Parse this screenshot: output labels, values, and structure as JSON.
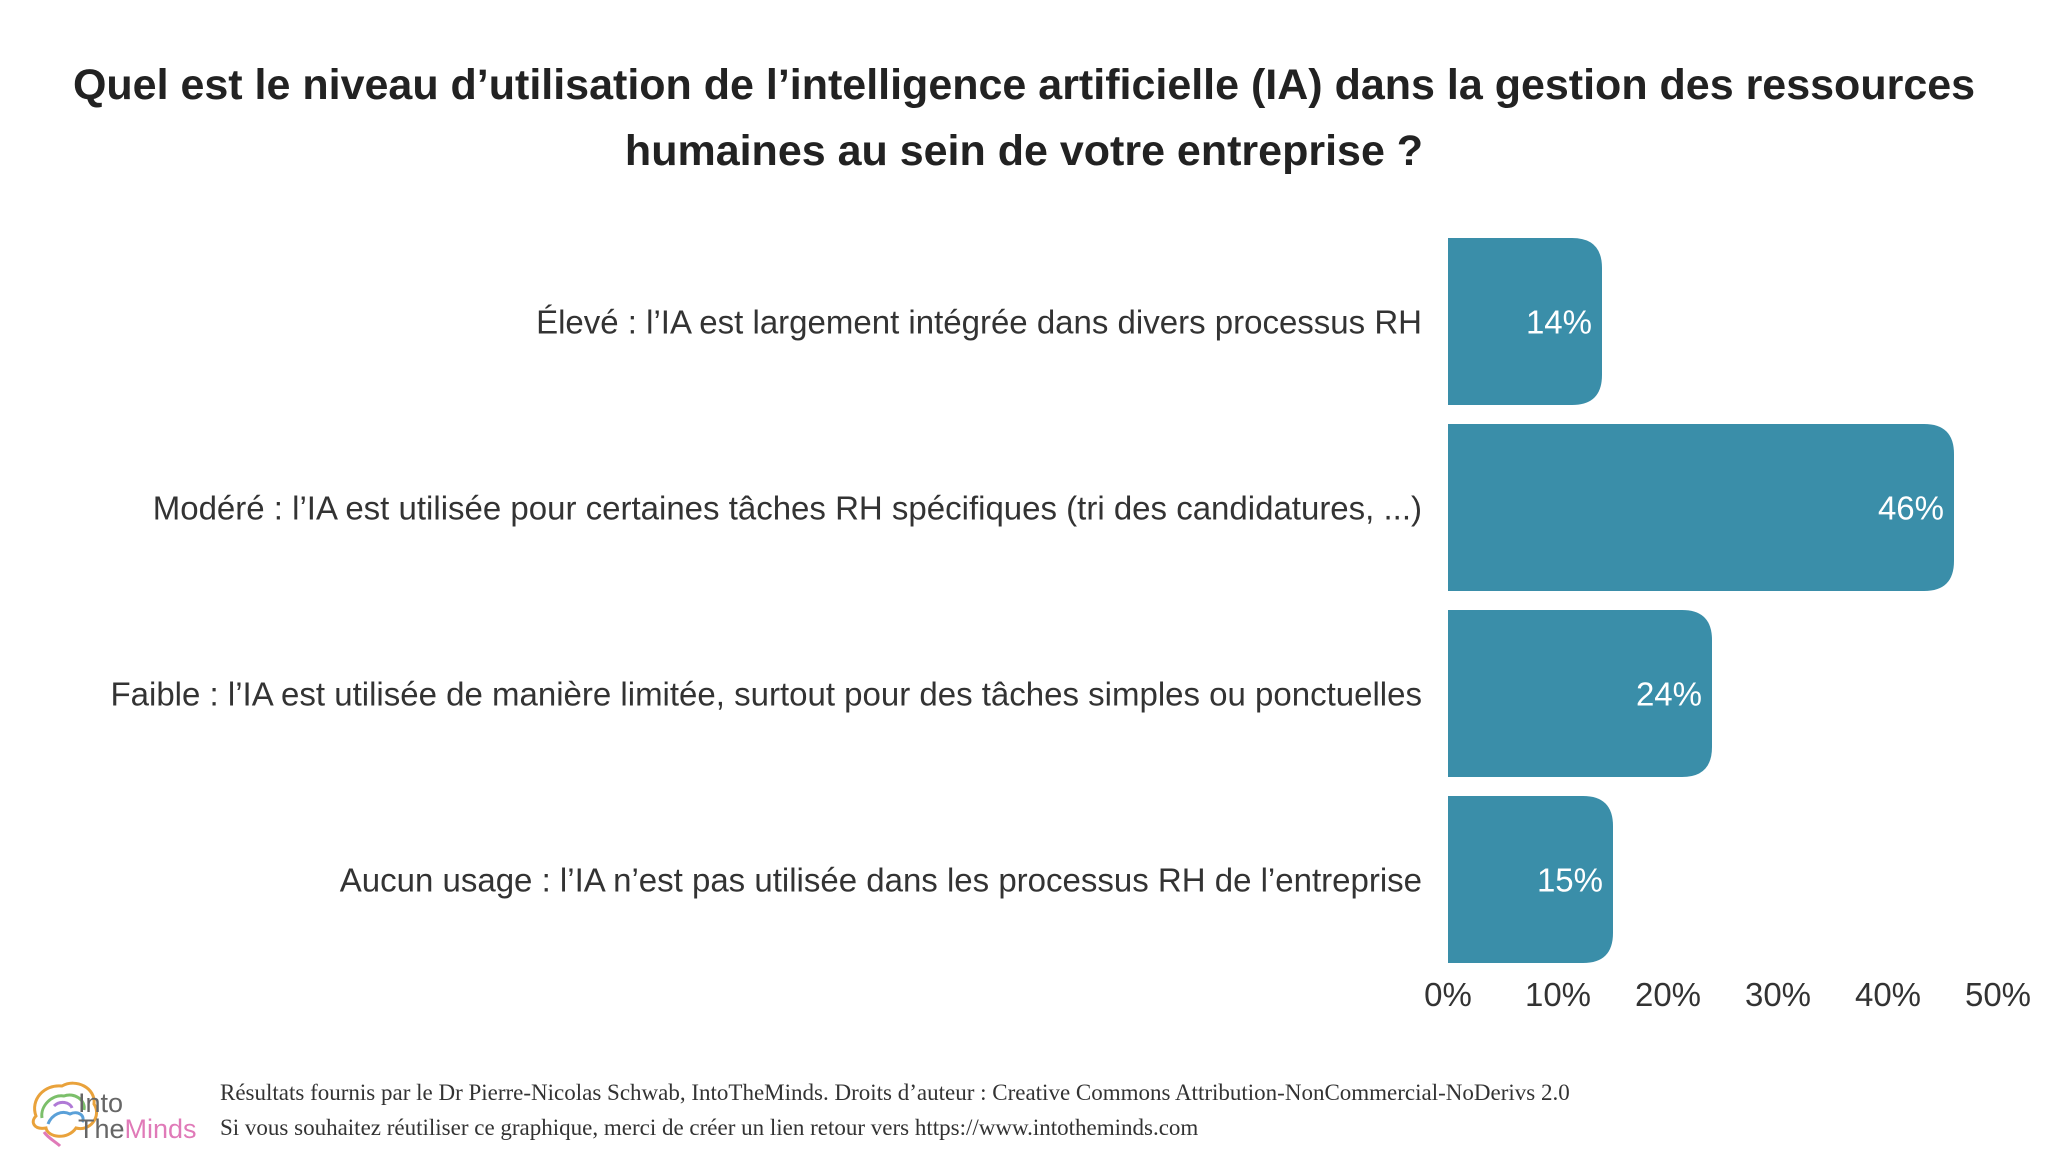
{
  "chart_data": {
    "type": "bar",
    "orientation": "horizontal",
    "title": "Quel est le niveau d’utilisation de l’intelligence artificielle (IA) dans la gestion des ressources humaines au sein de votre entreprise ?",
    "title_lines": [
      "Quel est le niveau d’utilisation de l’intelligence artificielle (IA) dans la gestion des ressources",
      "humaines au sein de votre entreprise ?"
    ],
    "categories": [
      "Élevé : l’IA est largement intégrée dans divers processus RH",
      "Modéré : l’IA est utilisée pour certaines tâches RH spécifiques (tri des candidatures, ...)",
      "Faible : l’IA est utilisée de manière limitée, surtout pour des tâches simples ou ponctuelles",
      "Aucun usage : l’IA n’est pas utilisée dans les processus RH de l’entreprise"
    ],
    "values": [
      14,
      46,
      24,
      15
    ],
    "value_labels": [
      "14%",
      "46%",
      "24%",
      "15%"
    ],
    "xlim": [
      0,
      50
    ],
    "xticks": [
      0,
      10,
      20,
      30,
      40,
      50
    ],
    "xtick_labels": [
      "0%",
      "10%",
      "20%",
      "30%",
      "40%",
      "50%"
    ],
    "xlabel": "",
    "ylabel": "",
    "grid": false,
    "bar_color": "#3a8ea9"
  },
  "footer": {
    "line1": "Résultats fournis par le Dr Pierre-Nicolas Schwab, IntoTheMinds. Droits d’auteur : Creative Commons Attribution-NonCommercial-NoDerivs 2.0",
    "line2": "Si vous souhaitez réutiliser ce graphique, merci de créer un lien retour vers https://www.intotheminds.com"
  },
  "logo": {
    "line1": "Into",
    "line2_a": "The",
    "line2_b": "Minds",
    "accent": "#e07ab8"
  }
}
